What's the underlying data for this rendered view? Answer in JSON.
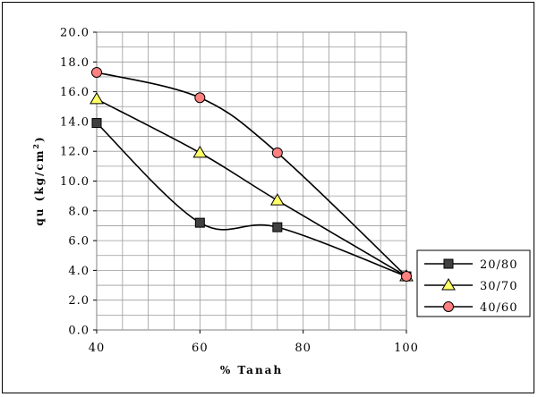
{
  "chart_data": {
    "type": "line",
    "xlabel": "% Tanah",
    "ylabel": "qu (kg/cm",
    "ylabel_sup": "2",
    "ylabel_close": ")",
    "xlim": [
      40,
      100
    ],
    "ylim": [
      0,
      20
    ],
    "x_ticks": [
      "40",
      "60",
      "80",
      "100"
    ],
    "y_ticks": [
      "0.0",
      "2.0",
      "4.0",
      "6.0",
      "8.0",
      "10.0",
      "12.0",
      "14.0",
      "16.0",
      "18.0",
      "20.0"
    ],
    "grid": true,
    "smooth": true,
    "legend_position": "right",
    "series": [
      {
        "name": "20/80",
        "marker": "square",
        "color": "#000000",
        "fill": "#404040",
        "x": [
          40,
          60,
          75,
          100
        ],
        "y": [
          13.9,
          7.2,
          6.9,
          3.6
        ]
      },
      {
        "name": "30/70",
        "marker": "triangle",
        "color": "#000000",
        "fill": "#ffff66",
        "x": [
          40,
          60,
          75,
          100
        ],
        "y": [
          15.5,
          11.9,
          8.7,
          3.6
        ]
      },
      {
        "name": "40/60",
        "marker": "circle",
        "color": "#000000",
        "fill": "#ff8080",
        "x": [
          40,
          60,
          75,
          100
        ],
        "y": [
          17.3,
          15.6,
          11.9,
          3.6
        ]
      }
    ]
  }
}
